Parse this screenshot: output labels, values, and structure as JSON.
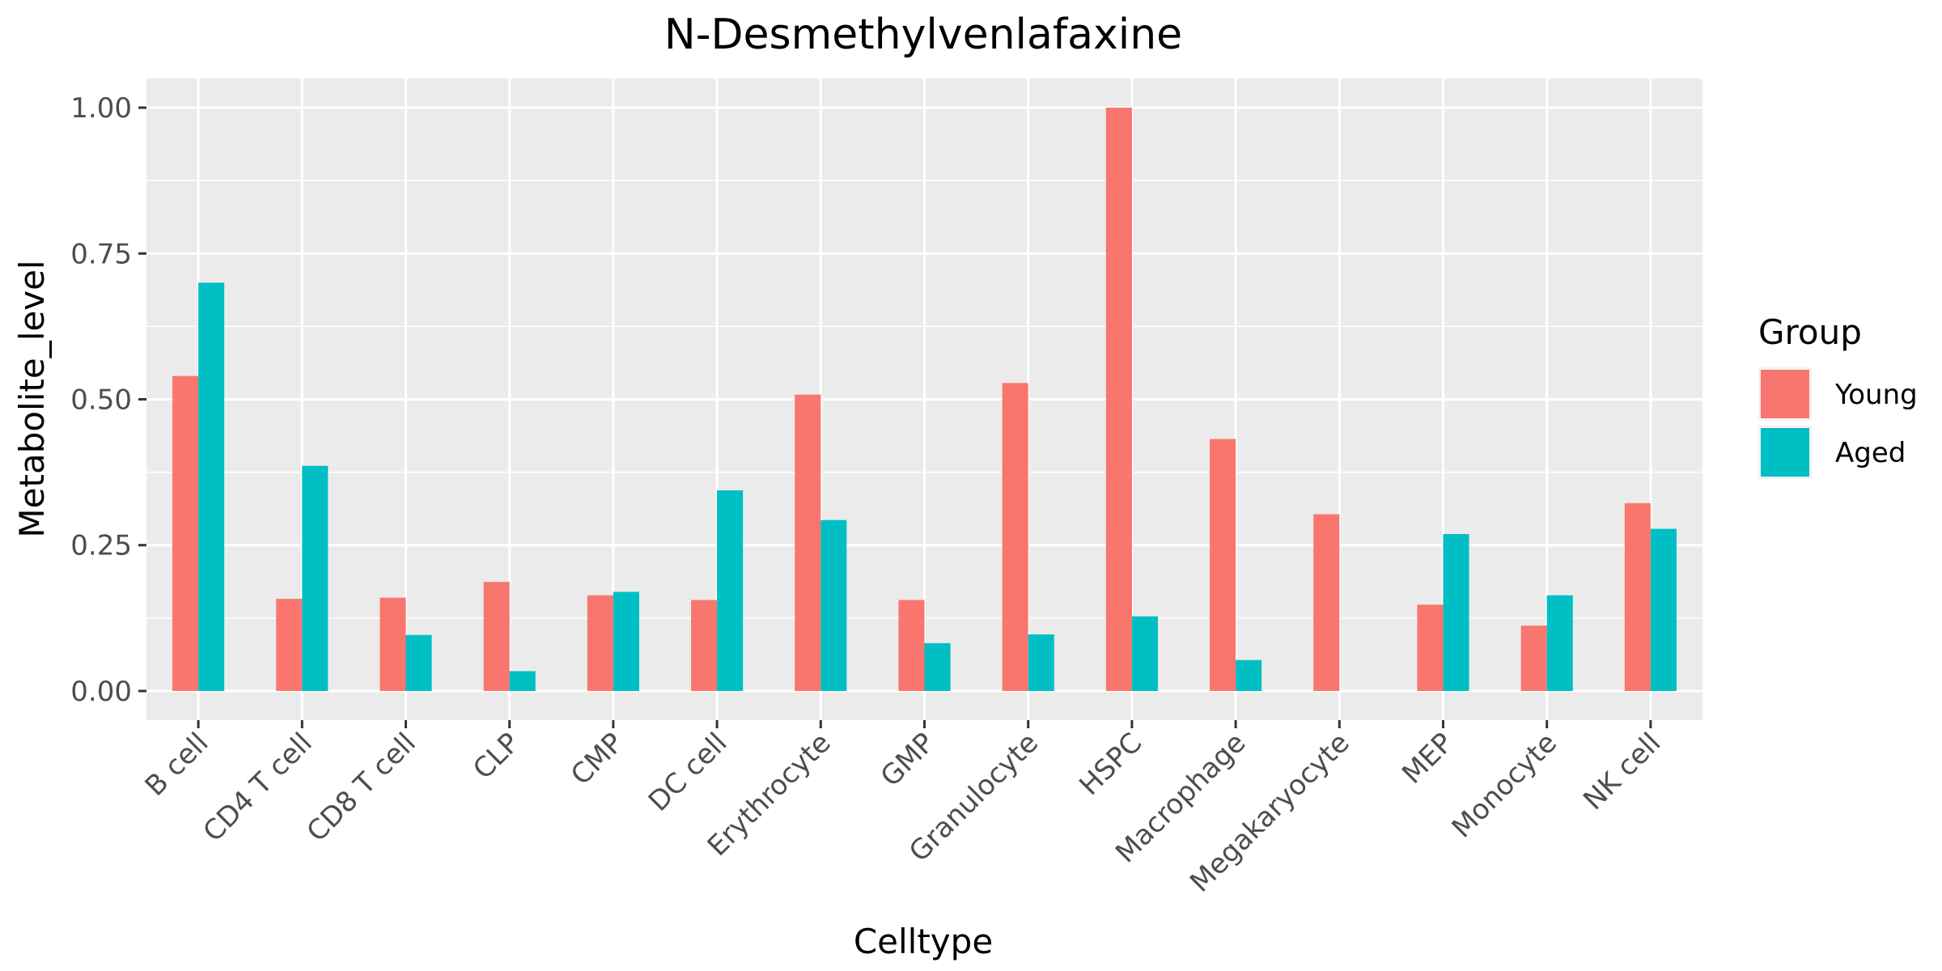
{
  "chart_data": {
    "type": "bar",
    "title": "N-Desmethylvenlafaxine",
    "xlabel": "Celltype",
    "ylabel": "Metabolite_level",
    "ylim": [
      -0.05,
      1.05
    ],
    "yticks": [
      0.0,
      0.25,
      0.5,
      0.75,
      1.0
    ],
    "ytick_labels": [
      "0.00",
      "0.25",
      "0.50",
      "0.75",
      "1.00"
    ],
    "grid": true,
    "legend": {
      "title": "Group",
      "placement": "right"
    },
    "categories": [
      "B cell",
      "CD4 T cell",
      "CD8 T cell",
      "CLP",
      "CMP",
      "DC cell",
      "Erythrocyte",
      "GMP",
      "Granulocyte",
      "HSPC",
      "Macrophage",
      "Megakaryocyte",
      "MEP",
      "Monocyte",
      "NK cell"
    ],
    "series": [
      {
        "name": "Young",
        "color": "#F8766D",
        "values": [
          0.54,
          0.158,
          0.16,
          0.187,
          0.164,
          0.156,
          0.508,
          0.156,
          0.528,
          1.0,
          0.432,
          0.303,
          0.148,
          0.112,
          0.322
        ]
      },
      {
        "name": "Aged",
        "color": "#00BFC4",
        "values": [
          0.7,
          0.386,
          0.096,
          0.034,
          0.17,
          0.344,
          0.293,
          0.082,
          0.097,
          0.128,
          0.053,
          0.0,
          0.269,
          0.164,
          0.278
        ]
      }
    ]
  }
}
